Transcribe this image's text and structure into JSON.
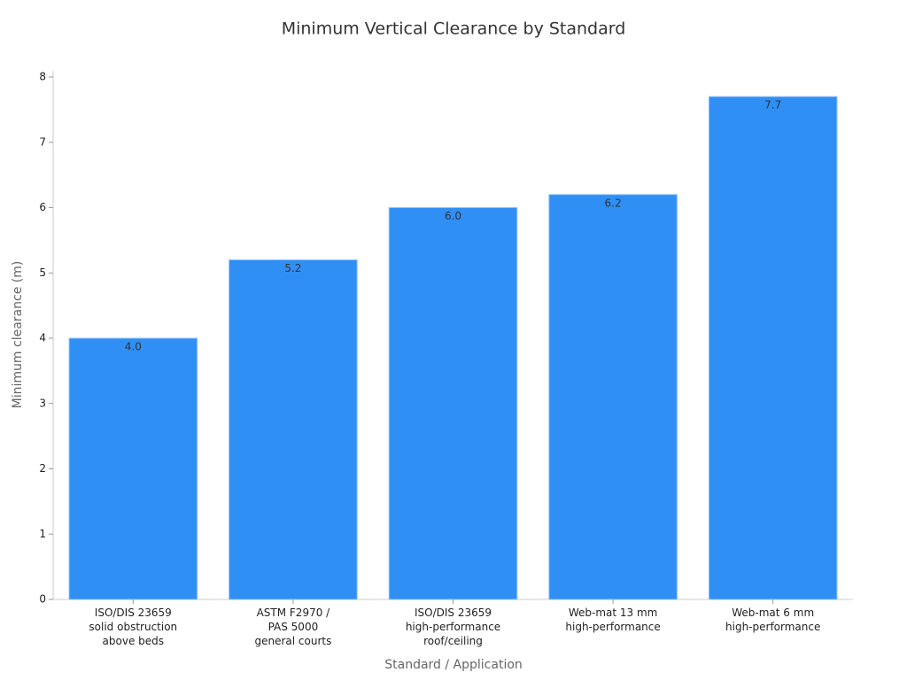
{
  "chart_data": {
    "type": "bar",
    "title": "Minimum Vertical Clearance by Standard",
    "x_label": "Standard / Application",
    "y_label": "Minimum clearance (m)",
    "categories": [
      "ISO/DIS 23659\nsolid obstruction\nabove beds",
      "ASTM F2970 /\nPAS 5000\ngeneral courts",
      "ISO/DIS 23659\nhigh-performance\nroof/ceiling",
      "Web-mat 13 mm\nhigh-performance",
      "Web-mat 6 mm\nhigh-performance"
    ],
    "values": [
      4.0,
      5.2,
      6.0,
      6.2,
      7.7
    ],
    "value_labels": [
      "4.0",
      "5.2",
      "6.0",
      "6.2",
      "7.7"
    ],
    "color": "#2f8ff5",
    "ylim": [
      0,
      8
    ],
    "yticks": [
      0,
      1,
      2,
      3,
      4,
      5,
      6,
      7,
      8
    ],
    "grid": false
  }
}
